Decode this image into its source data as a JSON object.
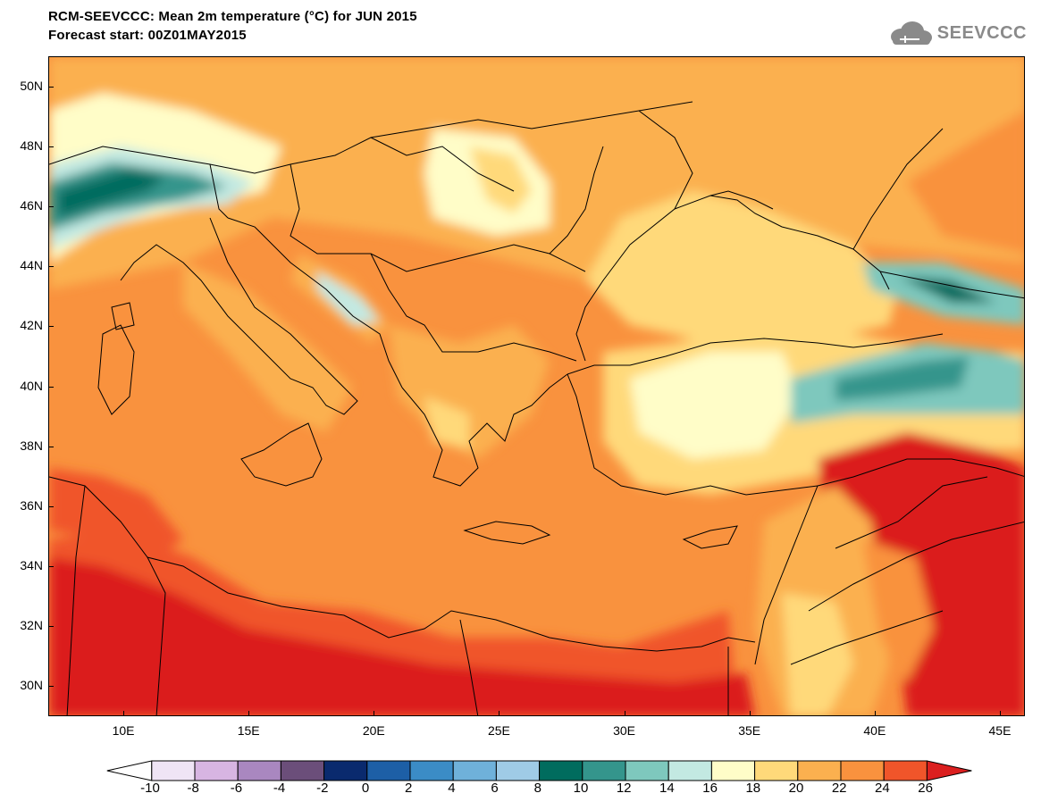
{
  "title": {
    "line1": "RCM-SEEVCCC: Mean 2m temperature (°C) for JUN 2015",
    "line2": "Forecast start: 00Z01MAY2015"
  },
  "logo": {
    "text": "SEEVCCC",
    "icon": "cloud-logo-icon"
  },
  "map": {
    "lon_range": [
      7,
      46
    ],
    "lat_range": [
      29,
      51
    ],
    "ocean_color": "#f9923e",
    "y_ticks": [
      "50N",
      "48N",
      "46N",
      "44N",
      "42N",
      "40N",
      "38N",
      "36N",
      "34N",
      "32N",
      "30N"
    ],
    "x_ticks": [
      "10E",
      "15E",
      "20E",
      "25E",
      "30E",
      "35E",
      "40E",
      "45E"
    ]
  },
  "colorbar": {
    "labels": [
      "-10",
      "-8",
      "-6",
      "-4",
      "-2",
      "0",
      "2",
      "4",
      "6",
      "8",
      "10",
      "12",
      "14",
      "16",
      "18",
      "20",
      "22",
      "24",
      "26"
    ],
    "colors": [
      "#ffffff",
      "#efe4f5",
      "#d7b5e2",
      "#a987c0",
      "#6b4e7a",
      "#0a2a6e",
      "#1d5fa6",
      "#3b8cc6",
      "#6fb1da",
      "#9fcbe6",
      "#006c5e",
      "#34958c",
      "#7ec8bd",
      "#c3e9e2",
      "#fffdc8",
      "#ffd97a",
      "#fbb04f",
      "#f9923e",
      "#f0552a",
      "#db1f1f"
    ]
  }
}
